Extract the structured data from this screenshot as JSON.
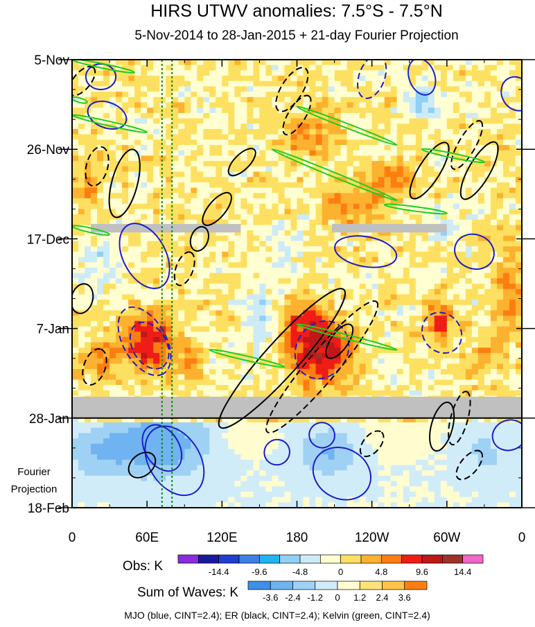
{
  "chart_data": {
    "type": "heatmap",
    "title": "HIRS UTWV anomalies: 7.5°S - 7.5°N",
    "subtitle": "5-Nov-2014 to 28-Jan-2015 + 21-day Fourier Projection",
    "x_ticks": [
      "0",
      "60E",
      "120E",
      "180",
      "120W",
      "60W",
      "0"
    ],
    "x_tick_lon": [
      0,
      60,
      120,
      180,
      240,
      300,
      360
    ],
    "y_ticks": [
      "5-Nov",
      "26-Nov",
      "17-Dec",
      "7-Jan",
      "28-Jan",
      "18-Feb"
    ],
    "y_tick_day": [
      0,
      21,
      42,
      63,
      84,
      105
    ],
    "day_range": [
      0,
      105
    ],
    "lon_range": [
      0,
      360
    ],
    "projection_label_line1": "Fourier",
    "projection_label_line2": "Projection",
    "projection_start_day": 84,
    "missing_data_bands": [
      {
        "day_start": 38.5,
        "day_end": 40.5,
        "lon_start": 15,
        "lon_end": 135
      },
      {
        "day_start": 38.5,
        "day_end": 40.5,
        "lon_start": 208,
        "lon_end": 300
      },
      {
        "day_start": 79,
        "day_end": 84,
        "lon_start": 0,
        "lon_end": 360
      }
    ],
    "reference_lines_lon": [
      72,
      80
    ],
    "obs_colorbar": {
      "label": "Obs: K",
      "colors": [
        "#8a2be2",
        "#1a1aa0",
        "#1f3fcf",
        "#3f7fe8",
        "#21b4f2",
        "#8fd1f5",
        "#cdebf7",
        "#ffffd2",
        "#fde061",
        "#fdb22f",
        "#fd7e10",
        "#ef1d16",
        "#c01717",
        "#a0302a",
        "#f067c8"
      ],
      "tick_labels": [
        "-14.4",
        "-9.6",
        "-4.8",
        "0",
        "4.8",
        "9.6",
        "14.4"
      ]
    },
    "waves_colorbar": {
      "label": "Sum of Waves: K",
      "colors": [
        "#3f8fe8",
        "#6fb4f0",
        "#9fd1f5",
        "#d1ecf9",
        "#fffdd0",
        "#fde37a",
        "#fdc448",
        "#fd7e10"
      ],
      "tick_labels": [
        "-3.6",
        "-2.4",
        "-1.2",
        "0",
        "1.2",
        "2.4",
        "3.6"
      ]
    },
    "footer": "MJO (blue, CINT=2.4); ER (black, CINT=2.4); Kelvin (green, CINT=2.4)",
    "wave_contours": {
      "mjo": [
        {
          "lon": 58,
          "day": 46,
          "rx": 28,
          "ry": 5,
          "angle": 62,
          "dashed": false
        },
        {
          "lon": 58,
          "day": 66,
          "rx": 30,
          "ry": 5,
          "angle": 60,
          "dashed": true
        },
        {
          "lon": 62,
          "day": 67,
          "rx": 20,
          "ry": 4,
          "angle": 60,
          "dashed": true
        },
        {
          "lon": 82,
          "day": 94,
          "rx": 30,
          "ry": 6,
          "angle": 58,
          "dashed": false
        },
        {
          "lon": 72,
          "day": 91,
          "rx": 20,
          "ry": 4,
          "angle": 58,
          "dashed": false
        },
        {
          "lon": 23,
          "day": 4,
          "rx": 12,
          "ry": 3,
          "angle": 0,
          "dashed": false
        },
        {
          "lon": 28,
          "day": 13,
          "rx": 16,
          "ry": 3,
          "angle": 20,
          "dashed": false
        },
        {
          "lon": 235,
          "day": 45,
          "rx": 25,
          "ry": 3.5,
          "angle": 10,
          "dashed": false
        },
        {
          "lon": 200,
          "day": 68,
          "rx": 24,
          "ry": 6,
          "angle": -58,
          "dashed": true
        },
        {
          "lon": 216,
          "day": 97,
          "rx": 20,
          "ry": 7,
          "angle": -62,
          "dashed": false
        },
        {
          "lon": 200,
          "day": 88,
          "rx": 10,
          "ry": 3,
          "angle": -60,
          "dashed": false
        },
        {
          "lon": 240,
          "day": 4,
          "rx": 18,
          "ry": 3,
          "angle": -70,
          "dashed": true
        },
        {
          "lon": 280,
          "day": 4,
          "rx": 15,
          "ry": 3,
          "angle": 70,
          "dashed": false
        },
        {
          "lon": 296,
          "day": 64,
          "rx": 15,
          "ry": 5,
          "angle": -40,
          "dashed": true
        },
        {
          "lon": 356,
          "day": 8,
          "rx": 14,
          "ry": 3.5,
          "angle": 60,
          "dashed": false
        },
        {
          "lon": 350,
          "day": 88,
          "rx": 12,
          "ry": 4,
          "angle": 70,
          "dashed": false
        },
        {
          "lon": 322,
          "day": 45,
          "rx": 16,
          "ry": 4,
          "angle": 20,
          "dashed": false
        },
        {
          "lon": 164,
          "day": 92,
          "rx": 10,
          "ry": 3,
          "angle": 50,
          "dashed": false
        }
      ],
      "er": [
        {
          "lon": 42,
          "day": 29,
          "rx": 28,
          "ry": 3,
          "angle": -75,
          "dashed": false
        },
        {
          "lon": 20,
          "day": 25,
          "rx": 16,
          "ry": 2.5,
          "angle": -75,
          "dashed": true
        },
        {
          "lon": 8,
          "day": 56,
          "rx": 12,
          "ry": 2.5,
          "angle": -75,
          "dashed": false
        },
        {
          "lon": 18,
          "day": 72,
          "rx": 15,
          "ry": 2.5,
          "angle": -70,
          "dashed": true
        },
        {
          "lon": 90,
          "day": 49,
          "rx": 14,
          "ry": 2,
          "angle": -70,
          "dashed": true
        },
        {
          "lon": 102,
          "day": 42,
          "rx": 10,
          "ry": 2,
          "angle": -70,
          "dashed": false
        },
        {
          "lon": 168,
          "day": 70,
          "rx": 74,
          "ry": 4,
          "angle": -48,
          "dashed": false
        },
        {
          "lon": 200,
          "day": 72,
          "rx": 68,
          "ry": 3.5,
          "angle": -50,
          "dashed": true
        },
        {
          "lon": 116,
          "day": 35,
          "rx": 16,
          "ry": 2,
          "angle": -50,
          "dashed": false
        },
        {
          "lon": 8,
          "day": 5,
          "rx": 14,
          "ry": 2,
          "angle": -50,
          "dashed": true
        },
        {
          "lon": 176,
          "day": 7,
          "rx": 20,
          "ry": 2.5,
          "angle": -58,
          "dashed": true
        },
        {
          "lon": 180,
          "day": 13,
          "rx": 18,
          "ry": 2,
          "angle": -58,
          "dashed": true
        },
        {
          "lon": 286,
          "day": 26,
          "rx": 26,
          "ry": 2.5,
          "angle": -58,
          "dashed": false
        },
        {
          "lon": 326,
          "day": 26,
          "rx": 26,
          "ry": 2.5,
          "angle": -60,
          "dashed": false
        },
        {
          "lon": 316,
          "day": 20,
          "rx": 22,
          "ry": 2,
          "angle": -60,
          "dashed": true
        },
        {
          "lon": 296,
          "day": 86,
          "rx": 20,
          "ry": 2.5,
          "angle": -75,
          "dashed": false
        },
        {
          "lon": 310,
          "day": 84,
          "rx": 22,
          "ry": 2,
          "angle": -75,
          "dashed": true
        },
        {
          "lon": 318,
          "day": 95,
          "rx": 14,
          "ry": 2,
          "angle": -50,
          "dashed": true
        },
        {
          "lon": 240,
          "day": 90,
          "rx": 12,
          "ry": 2,
          "angle": -50,
          "dashed": true
        },
        {
          "lon": 214,
          "day": 66,
          "rx": 16,
          "ry": 2,
          "angle": -55,
          "dashed": false
        },
        {
          "lon": 56,
          "day": 95,
          "rx": 12,
          "ry": 2.5,
          "angle": -40,
          "dashed": false
        },
        {
          "lon": 136,
          "day": 24,
          "rx": 14,
          "ry": 1.8,
          "angle": -45,
          "dashed": false
        }
      ],
      "kelvin": [
        {
          "x1": 0,
          "d1": 0,
          "x2": 50,
          "d2": 3
        },
        {
          "x1": 0,
          "d1": 13,
          "x2": 60,
          "d2": 17
        },
        {
          "x1": 0,
          "d1": 39,
          "x2": 30,
          "d2": 41
        },
        {
          "x1": 180,
          "d1": 11,
          "x2": 260,
          "d2": 20
        },
        {
          "x1": 160,
          "d1": 21,
          "x2": 260,
          "d2": 33
        },
        {
          "x1": 250,
          "d1": 34,
          "x2": 300,
          "d2": 36
        },
        {
          "x1": 280,
          "d1": 21,
          "x2": 330,
          "d2": 24
        },
        {
          "x1": 110,
          "d1": 68,
          "x2": 170,
          "d2": 72
        },
        {
          "x1": 180,
          "d1": 62,
          "x2": 260,
          "d2": 68
        },
        {
          "x1": 0,
          "d1": 9,
          "x2": 12,
          "d2": 10
        }
      ]
    }
  }
}
